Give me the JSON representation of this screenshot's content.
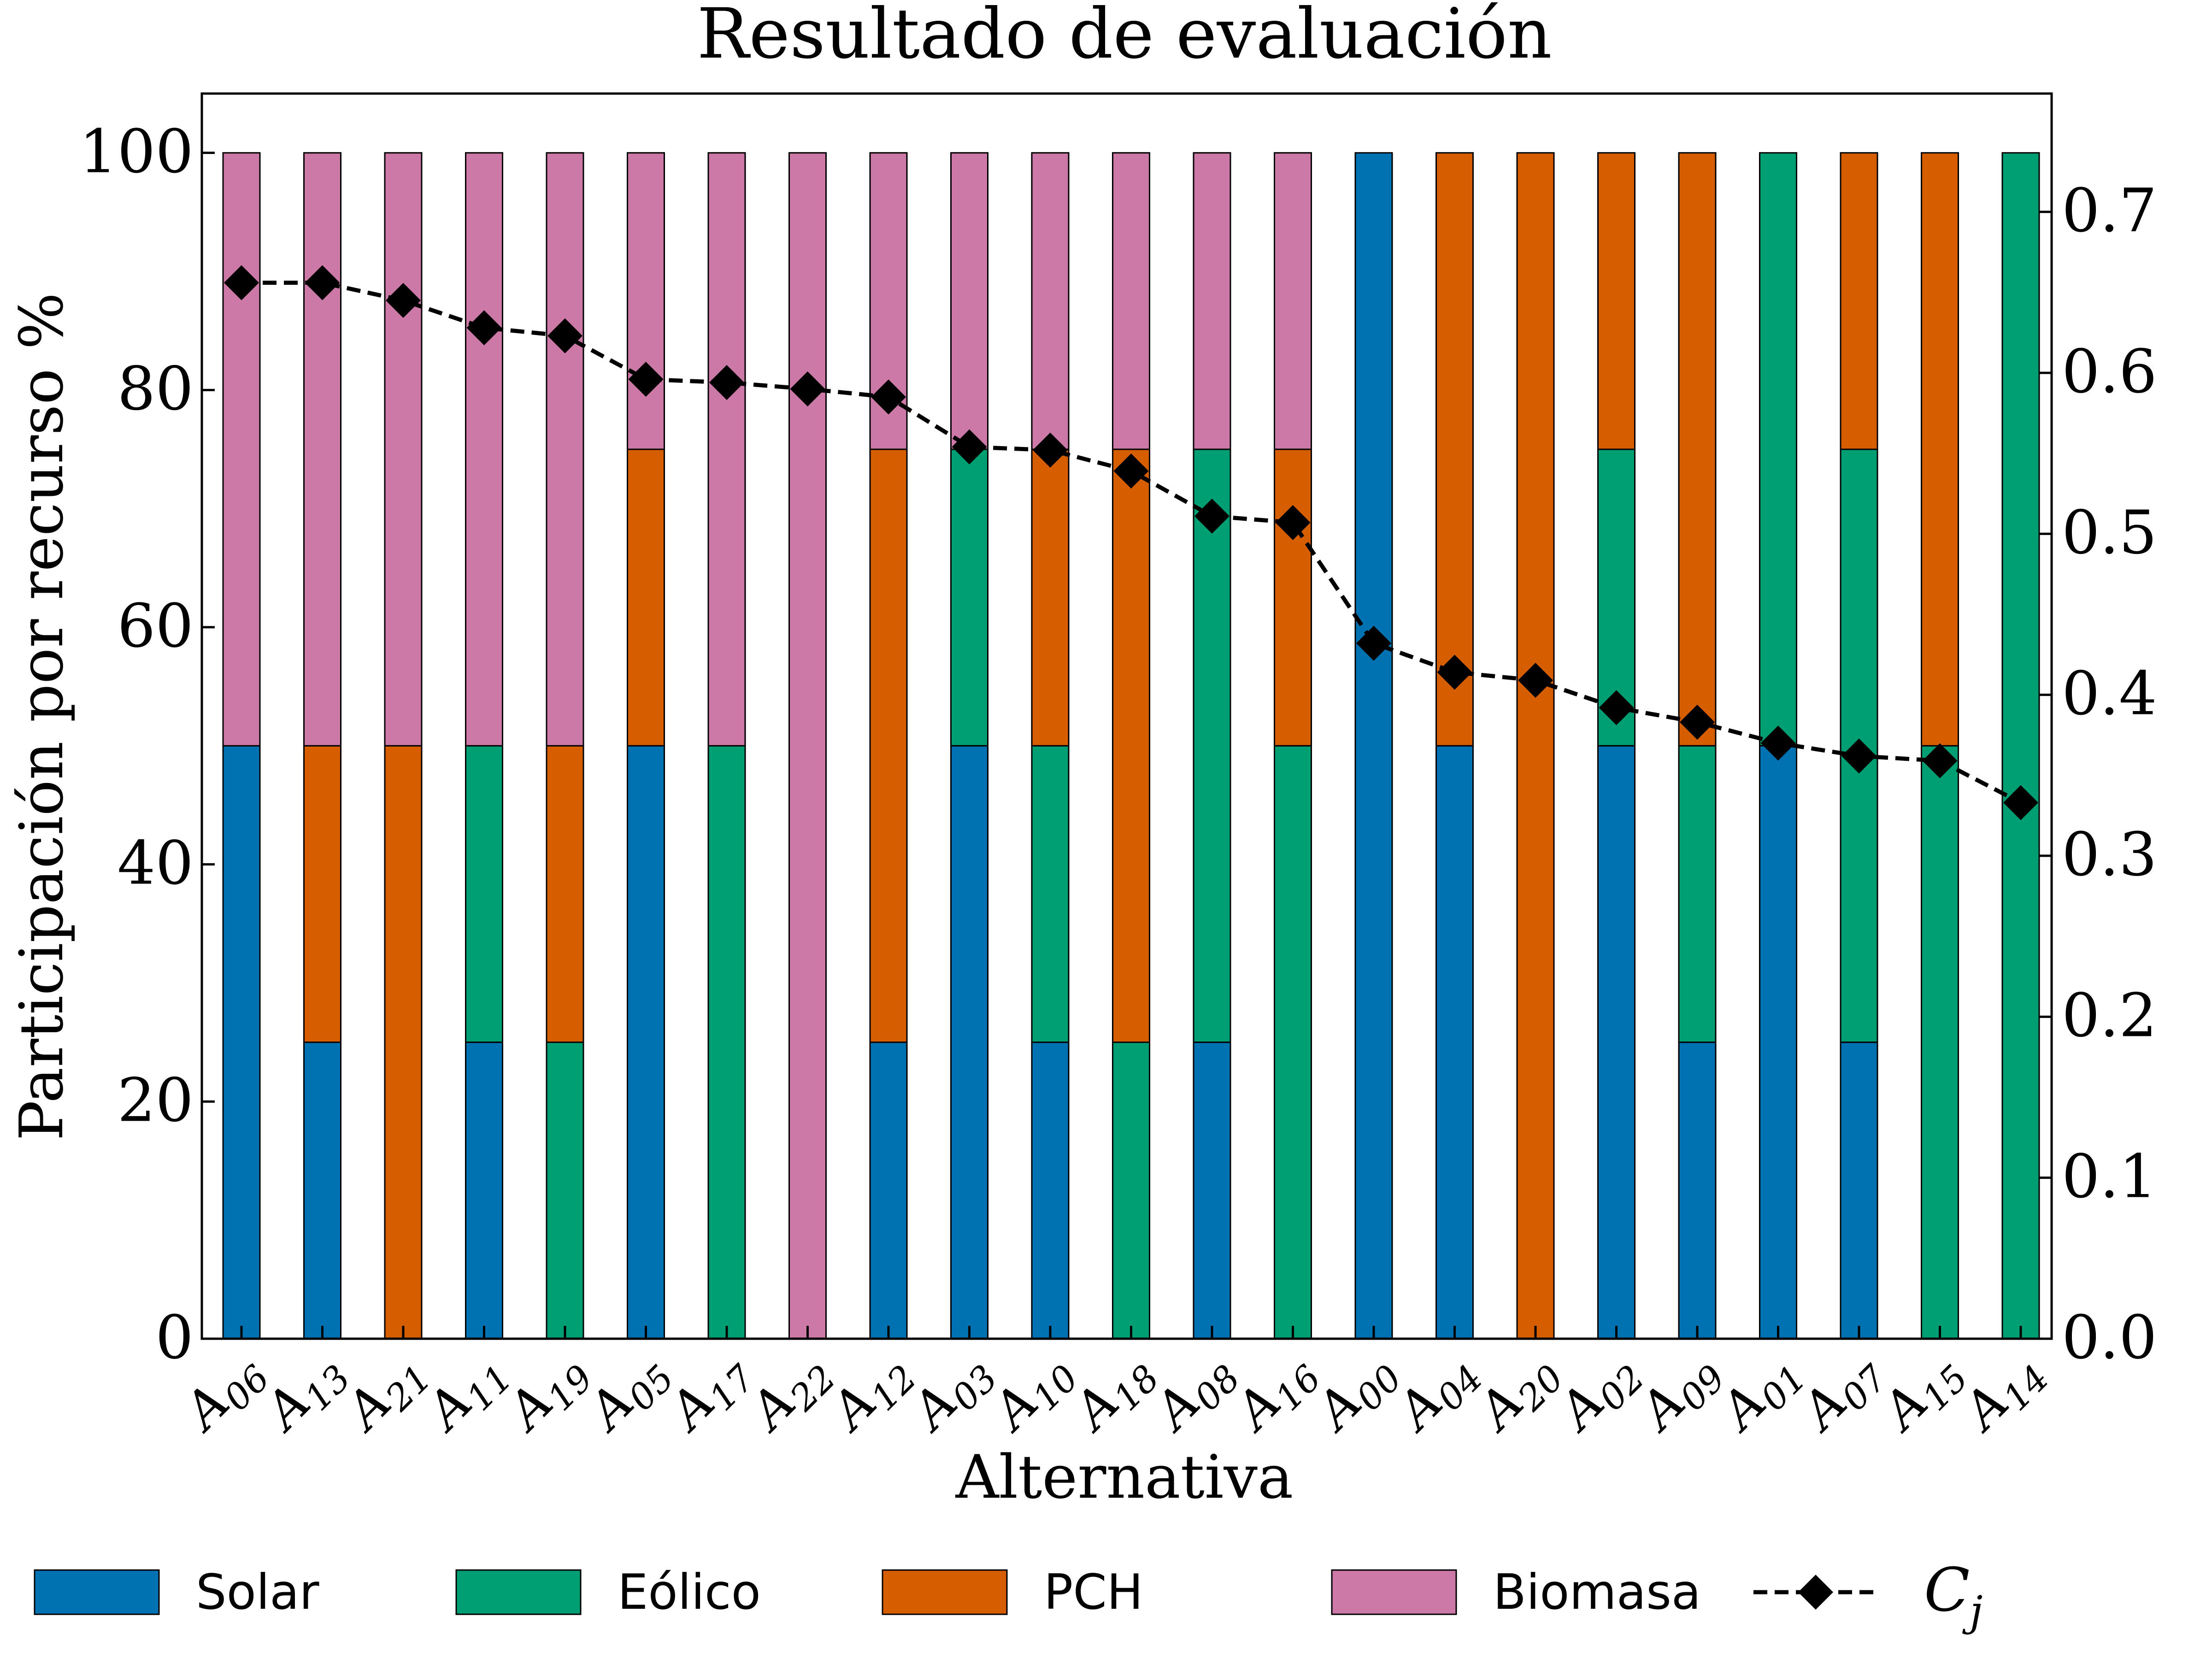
{
  "chart_data": {
    "type": "bar",
    "stacked": true,
    "title": "Resultado de evaluación",
    "xlabel": "Alternativa",
    "ylabel": "Participación por recurso %",
    "ylim": [
      0,
      105
    ],
    "y2lim": [
      0,
      0.7735
    ],
    "yticks": [
      "0",
      "20",
      "40",
      "60",
      "80",
      "100"
    ],
    "y2ticks": [
      "0.0",
      "0.1",
      "0.2",
      "0.3",
      "0.4",
      "0.5",
      "0.6",
      "0.7"
    ],
    "categories": [
      {
        "base": "A",
        "sub": "06"
      },
      {
        "base": "A",
        "sub": "13"
      },
      {
        "base": "A",
        "sub": "21"
      },
      {
        "base": "A",
        "sub": "11"
      },
      {
        "base": "A",
        "sub": "19"
      },
      {
        "base": "A",
        "sub": "05"
      },
      {
        "base": "A",
        "sub": "17"
      },
      {
        "base": "A",
        "sub": "22"
      },
      {
        "base": "A",
        "sub": "12"
      },
      {
        "base": "A",
        "sub": "03"
      },
      {
        "base": "A",
        "sub": "10"
      },
      {
        "base": "A",
        "sub": "18"
      },
      {
        "base": "A",
        "sub": "08"
      },
      {
        "base": "A",
        "sub": "16"
      },
      {
        "base": "A",
        "sub": "00"
      },
      {
        "base": "A",
        "sub": "04"
      },
      {
        "base": "A",
        "sub": "20"
      },
      {
        "base": "A",
        "sub": "02"
      },
      {
        "base": "A",
        "sub": "09"
      },
      {
        "base": "A",
        "sub": "01"
      },
      {
        "base": "A",
        "sub": "07"
      },
      {
        "base": "A",
        "sub": "15"
      },
      {
        "base": "A",
        "sub": "14"
      }
    ],
    "series": [
      {
        "name": "Solar",
        "color": "#0072b2",
        "values": [
          50,
          25,
          0,
          25,
          0,
          50,
          0,
          0,
          25,
          50,
          25,
          0,
          25,
          0,
          100,
          50,
          0,
          50,
          25,
          50,
          25,
          0,
          0
        ]
      },
      {
        "name": "Eólico",
        "color": "#009e73",
        "values": [
          0,
          0,
          0,
          25,
          25,
          0,
          50,
          0,
          0,
          25,
          25,
          25,
          50,
          50,
          0,
          0,
          0,
          25,
          25,
          50,
          50,
          50,
          100
        ]
      },
      {
        "name": "PCH",
        "color": "#d55e00",
        "values": [
          0,
          25,
          50,
          0,
          25,
          25,
          0,
          0,
          50,
          0,
          25,
          50,
          0,
          25,
          0,
          50,
          100,
          25,
          50,
          0,
          25,
          50,
          0
        ]
      },
      {
        "name": "Biomasa",
        "color": "#cc79a7",
        "values": [
          50,
          50,
          50,
          50,
          50,
          25,
          50,
          100,
          25,
          25,
          25,
          25,
          25,
          25,
          0,
          0,
          0,
          0,
          0,
          0,
          0,
          0,
          0
        ]
      }
    ],
    "line": {
      "name_base": "C",
      "name_sub": "j",
      "axis": "right",
      "color": "#000000",
      "values": [
        0.656,
        0.656,
        0.645,
        0.628,
        0.623,
        0.596,
        0.594,
        0.59,
        0.585,
        0.554,
        0.552,
        0.539,
        0.511,
        0.507,
        0.432,
        0.414,
        0.409,
        0.392,
        0.383,
        0.37,
        0.362,
        0.359,
        0.333
      ]
    },
    "legend_position": "bottom",
    "grid": false
  }
}
